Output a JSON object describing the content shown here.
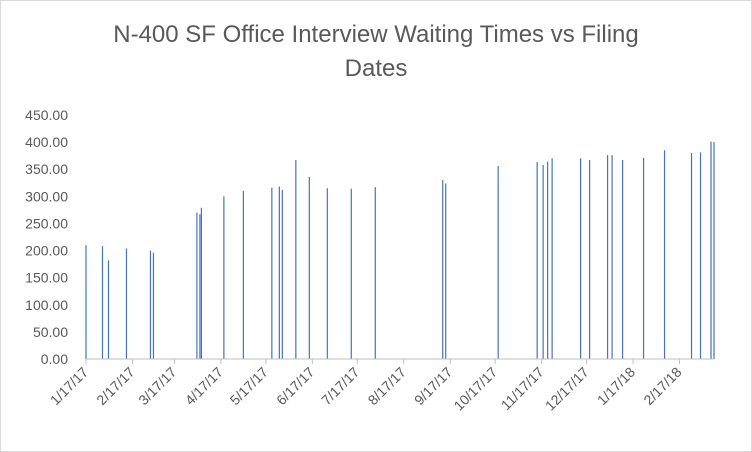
{
  "chart_data": {
    "type": "bar",
    "title_line1": "N-400 SF Office Interview Waiting Times vs Filing",
    "title_line2": "Dates",
    "xlabel": "",
    "ylabel": "",
    "ylim": [
      0,
      450
    ],
    "y_ticks": [
      "0.00",
      "50.00",
      "100.00",
      "150.00",
      "200.00",
      "250.00",
      "300.00",
      "350.00",
      "400.00",
      "450.00"
    ],
    "x_range": [
      "2017-01-17",
      "2018-03-12"
    ],
    "x_ticks": [
      {
        "date": "2017-01-17",
        "label": "1/17/17"
      },
      {
        "date": "2017-02-17",
        "label": "2/17/17"
      },
      {
        "date": "2017-03-17",
        "label": "3/17/17"
      },
      {
        "date": "2017-04-17",
        "label": "4/17/17"
      },
      {
        "date": "2017-05-17",
        "label": "5/17/17"
      },
      {
        "date": "2017-06-17",
        "label": "6/17/17"
      },
      {
        "date": "2017-07-17",
        "label": "7/17/17"
      },
      {
        "date": "2017-08-17",
        "label": "8/17/17"
      },
      {
        "date": "2017-09-17",
        "label": "9/17/17"
      },
      {
        "date": "2017-10-17",
        "label": "10/17/17"
      },
      {
        "date": "2017-11-17",
        "label": "11/17/17"
      },
      {
        "date": "2017-12-17",
        "label": "12/17/17"
      },
      {
        "date": "2018-01-17",
        "label": "1/17/18"
      },
      {
        "date": "2018-02-17",
        "label": "2/17/18"
      }
    ],
    "grid": false,
    "legend": "none",
    "bar_color": "#4472c4",
    "axis_color": "#bfbfbf",
    "text_color": "#595959",
    "points": [
      {
        "x": "2017-01-17",
        "y": 210
      },
      {
        "x": "2017-01-28",
        "y": 208
      },
      {
        "x": "2017-02-01",
        "y": 182
      },
      {
        "x": "2017-02-13",
        "y": 204
      },
      {
        "x": "2017-03-01",
        "y": 200
      },
      {
        "x": "2017-03-03",
        "y": 196
      },
      {
        "x": "2017-04-01",
        "y": 270
      },
      {
        "x": "2017-04-03",
        "y": 267
      },
      {
        "x": "2017-04-04",
        "y": 279
      },
      {
        "x": "2017-04-19",
        "y": 300
      },
      {
        "x": "2017-05-02",
        "y": 310
      },
      {
        "x": "2017-05-21",
        "y": 316
      },
      {
        "x": "2017-05-26",
        "y": 318
      },
      {
        "x": "2017-05-28",
        "y": 312
      },
      {
        "x": "2017-06-06",
        "y": 367
      },
      {
        "x": "2017-06-15",
        "y": 336
      },
      {
        "x": "2017-06-27",
        "y": 315
      },
      {
        "x": "2017-07-13",
        "y": 314
      },
      {
        "x": "2017-07-29",
        "y": 317
      },
      {
        "x": "2017-09-12",
        "y": 330
      },
      {
        "x": "2017-09-14",
        "y": 324
      },
      {
        "x": "2017-10-19",
        "y": 356
      },
      {
        "x": "2017-11-14",
        "y": 363
      },
      {
        "x": "2017-11-18",
        "y": 358
      },
      {
        "x": "2017-11-21",
        "y": 364
      },
      {
        "x": "2017-11-24",
        "y": 370
      },
      {
        "x": "2017-12-13",
        "y": 370
      },
      {
        "x": "2017-12-19",
        "y": 367
      },
      {
        "x": "2017-12-31",
        "y": 376
      },
      {
        "x": "2018-01-03",
        "y": 376
      },
      {
        "x": "2018-01-10",
        "y": 367
      },
      {
        "x": "2018-01-24",
        "y": 371
      },
      {
        "x": "2018-02-07",
        "y": 385
      },
      {
        "x": "2018-02-25",
        "y": 380
      },
      {
        "x": "2018-03-03",
        "y": 381
      },
      {
        "x": "2018-03-10",
        "y": 401
      },
      {
        "x": "2018-03-12",
        "y": 400
      }
    ]
  }
}
